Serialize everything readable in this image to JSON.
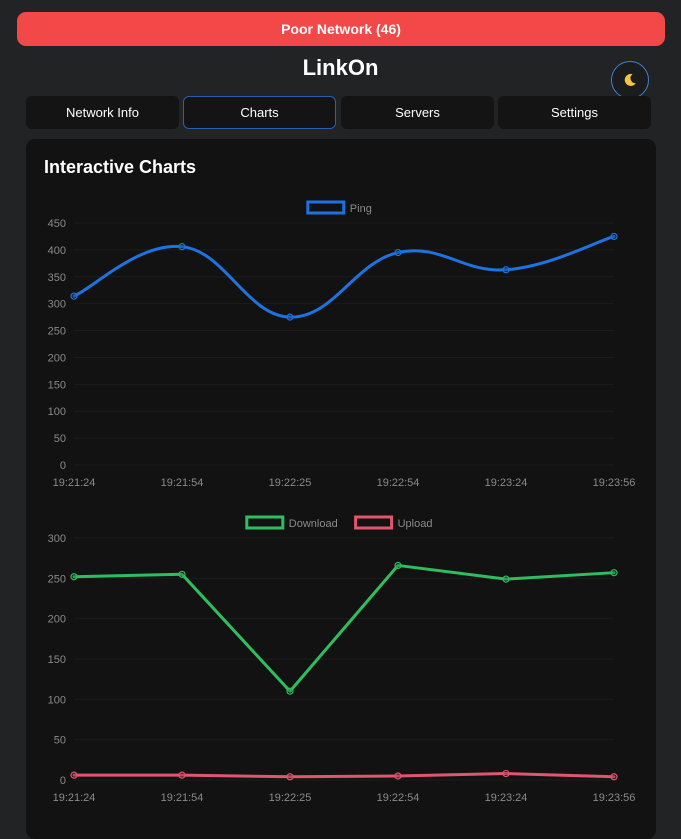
{
  "banner": {
    "text": "Poor Network (46)"
  },
  "app": {
    "title": "LinkOn"
  },
  "theme": {
    "icon": "moon-icon"
  },
  "tabs": [
    {
      "label": "Network Info",
      "active": false
    },
    {
      "label": "Charts",
      "active": true
    },
    {
      "label": "Servers",
      "active": false
    },
    {
      "label": "Settings",
      "active": false
    }
  ],
  "panel": {
    "title": "Interactive Charts"
  },
  "colors": {
    "ping": "#1e73e0",
    "download": "#2fbe5f",
    "upload": "#e0566f",
    "banner": "#f24848",
    "axis_text": "#8a8a8a"
  },
  "chart_data": [
    {
      "type": "line",
      "title": "",
      "x": [
        "19:21:24",
        "19:21:54",
        "19:22:25",
        "19:22:54",
        "19:23:24",
        "19:23:56"
      ],
      "series": [
        {
          "name": "Ping",
          "values": [
            314,
            406,
            275,
            395,
            363,
            425
          ],
          "color": "#1e73e0"
        }
      ],
      "yticks": [
        0,
        50,
        100,
        150,
        200,
        250,
        300,
        350,
        400,
        450
      ],
      "ylim": [
        0,
        450
      ],
      "smooth": true,
      "legend": "top"
    },
    {
      "type": "line",
      "title": "",
      "x": [
        "19:21:24",
        "19:21:54",
        "19:22:25",
        "19:22:54",
        "19:23:24",
        "19:23:56"
      ],
      "series": [
        {
          "name": "Download",
          "values": [
            252,
            255,
            110,
            266,
            249,
            257
          ],
          "color": "#2fbe5f"
        },
        {
          "name": "Upload",
          "values": [
            6,
            6,
            4,
            5,
            8,
            4
          ],
          "color": "#e0566f"
        }
      ],
      "yticks": [
        0,
        50,
        100,
        150,
        200,
        250,
        300
      ],
      "ylim": [
        0,
        300
      ],
      "smooth": false,
      "legend": "top"
    }
  ]
}
